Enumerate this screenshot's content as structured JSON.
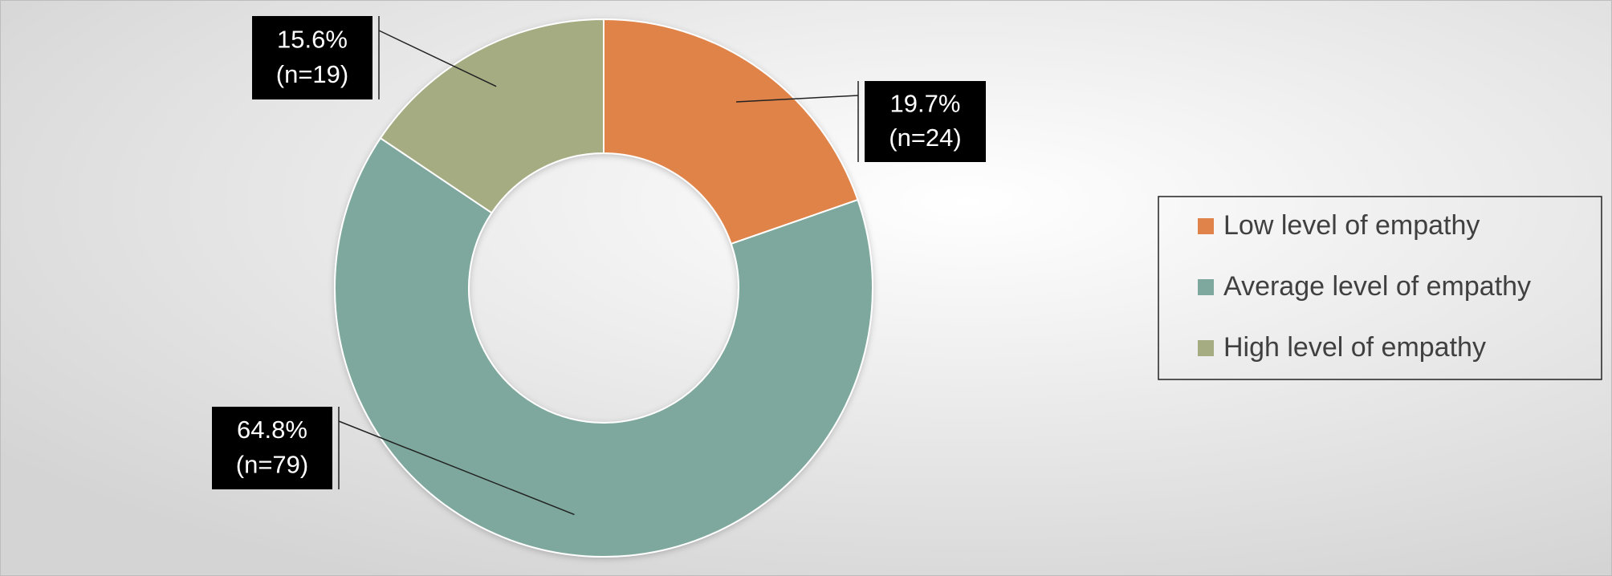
{
  "chart_data": {
    "type": "donut",
    "categories": [
      "Low level of empathy",
      "Average level of empathy",
      "High level of empathy"
    ],
    "values": [
      19.7,
      64.8,
      15.6
    ],
    "value_labels": [
      "19.7%",
      "64.8%",
      "15.6%"
    ],
    "count_labels": [
      "(n=24)",
      "(n=79)",
      "(n=19)"
    ],
    "colors": [
      "#E0834A",
      "#7EA89D",
      "#A6AC82"
    ],
    "legend": "right"
  }
}
